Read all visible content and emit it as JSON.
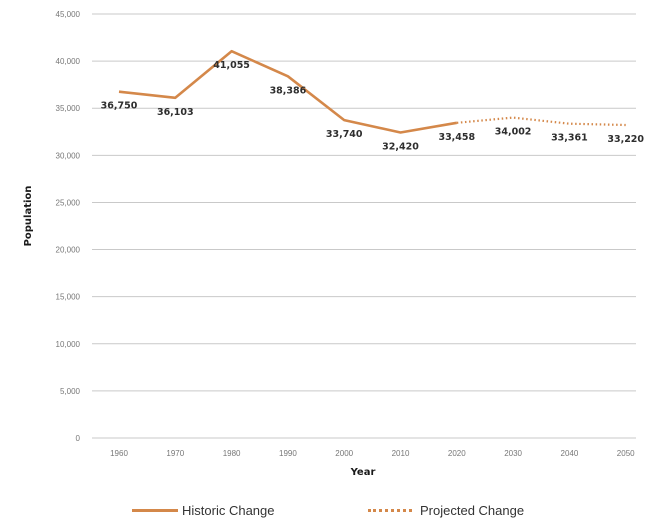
{
  "chart_data": {
    "type": "line",
    "xlabel": "Year",
    "ylabel": "Population",
    "x": [
      1960,
      1970,
      1980,
      1990,
      2000,
      2010,
      2020,
      2030,
      2040,
      2050
    ],
    "x_tick_labels": [
      "1960",
      "1970",
      "1980",
      "1990",
      "2000",
      "2010",
      "2020",
      "2030",
      "2040",
      "2050"
    ],
    "ylim": [
      0,
      45000
    ],
    "y_ticks": [
      0,
      5000,
      10000,
      15000,
      20000,
      25000,
      30000,
      35000,
      40000,
      45000
    ],
    "y_tick_labels": [
      "0",
      "5,000",
      "10,000",
      "15,000",
      "20,000",
      "25,000",
      "30,000",
      "35,000",
      "40,000",
      "45,000"
    ],
    "grid": "horizontal",
    "legend_position": "bottom",
    "color": "#d4884a",
    "series": [
      {
        "name": "Historic Change",
        "style": "solid",
        "x": [
          1960,
          1970,
          1980,
          1990,
          2000,
          2010,
          2020
        ],
        "values": [
          36750,
          36103,
          41055,
          38386,
          33740,
          32420,
          33458
        ],
        "labels": [
          "36,750",
          "36,103",
          "41,055",
          "38,386",
          "33,740",
          "32,420",
          "33,458"
        ]
      },
      {
        "name": "Projected Change",
        "style": "dotted",
        "x": [
          2020,
          2030,
          2040,
          2050
        ],
        "values": [
          33458,
          34002,
          33361,
          33220
        ],
        "labels": [
          "",
          "34,002",
          "33,361",
          "33,220"
        ]
      }
    ]
  }
}
